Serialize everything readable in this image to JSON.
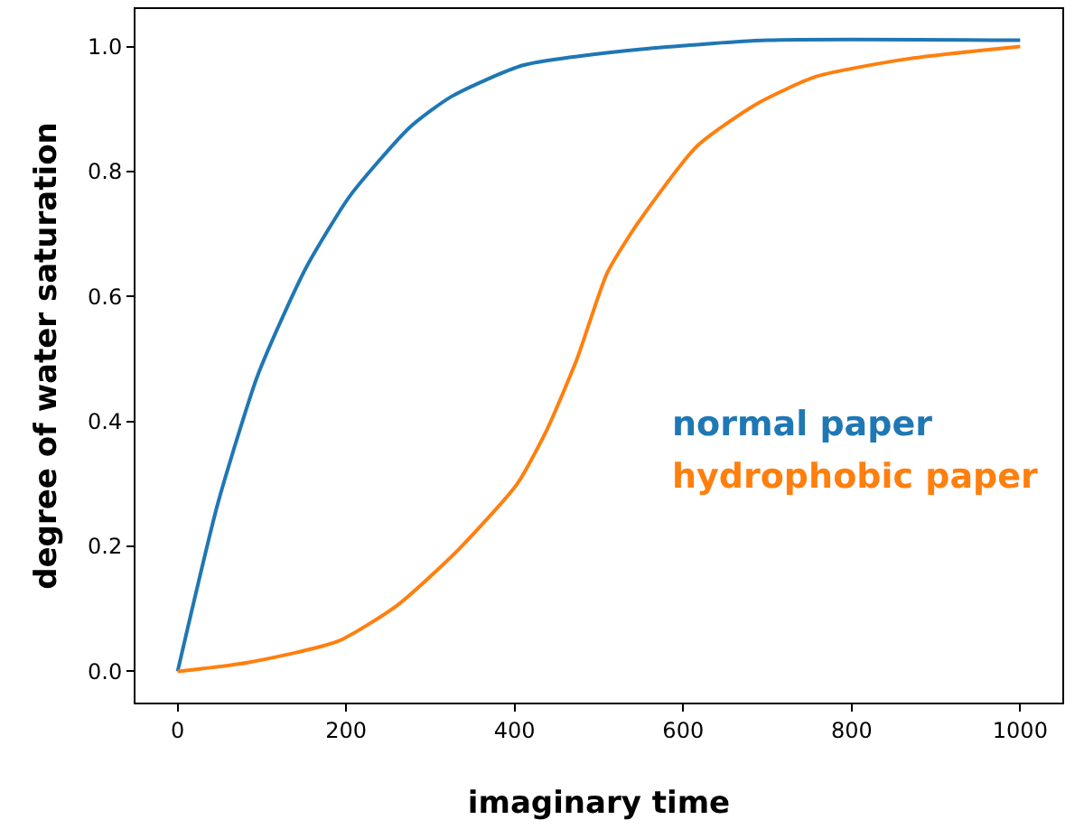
{
  "chart_data": {
    "type": "line",
    "xlabel": "imaginary time",
    "ylabel": "degree of water saturation",
    "xlim": [
      -50,
      1050
    ],
    "xticks": [
      0,
      200,
      400,
      600,
      800,
      1000
    ],
    "ylim": [
      -0.05,
      1.06
    ],
    "yticks": [
      {
        "value": 0,
        "label": "0.0"
      },
      {
        "value": 0.2,
        "label": "0.2"
      },
      {
        "value": 0.4,
        "label": "0.4"
      },
      {
        "value": 0.6,
        "label": "0.6"
      },
      {
        "value": 0.8,
        "label": "0.8"
      },
      {
        "value": 1,
        "label": "1.0"
      }
    ],
    "grid": false,
    "legend": false,
    "marker": "none",
    "line_style": "solid",
    "series": [
      {
        "name": "normal paper",
        "color": "#1f77b4",
        "x": [
          0,
          48,
          94,
          129,
          154,
          204,
          275,
          325,
          410,
          545,
          700,
          1000
        ],
        "values": [
          0,
          0.27,
          0.47,
          0.58,
          0.65,
          0.76,
          0.87,
          0.92,
          0.97,
          0.995,
          1.01,
          1.01
        ]
      },
      {
        "name": "hydrophobic paper",
        "color": "#ff7f0e",
        "x": [
          0,
          83,
          190,
          261,
          332,
          403,
          438,
          474,
          510,
          545,
          616,
          687,
          758,
          865,
          1000
        ],
        "values": [
          0,
          0.014,
          0.048,
          0.106,
          0.193,
          0.3,
          0.386,
          0.5,
          0.638,
          0.715,
          0.84,
          0.908,
          0.952,
          0.98,
          1.0
        ]
      }
    ]
  }
}
